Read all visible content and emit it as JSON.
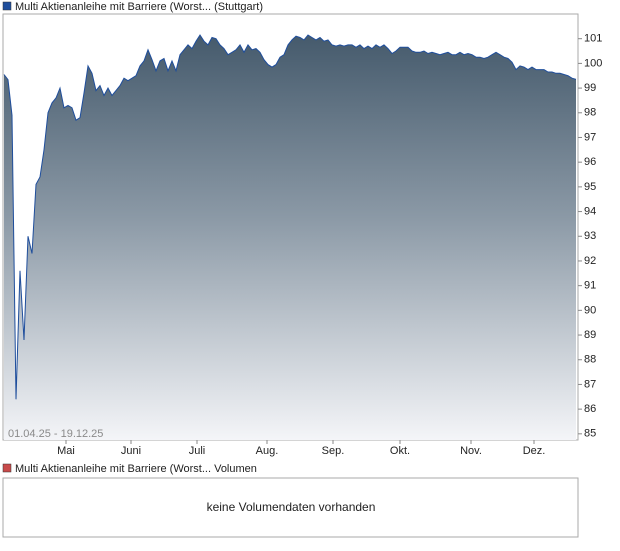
{
  "chart_data": {
    "type": "area",
    "series": [
      {
        "name": "Multi Aktienanleihe mit Barriere (Worst... (Stuttgart)",
        "color": "#1f4e9c",
        "values": [
          99.55,
          99.34,
          97.9,
          86.4,
          91.6,
          88.8,
          93.0,
          92.3,
          95.1,
          95.4,
          96.5,
          98.0,
          98.4,
          98.6,
          99.0,
          98.2,
          98.3,
          98.2,
          97.7,
          97.8,
          98.8,
          99.9,
          99.6,
          98.9,
          99.1,
          98.7,
          99.0,
          98.7,
          98.9,
          99.1,
          99.4,
          99.3,
          99.4,
          99.5,
          99.9,
          100.1,
          100.55,
          100.15,
          99.7,
          100.1,
          100.2,
          99.7,
          100.1,
          99.7,
          100.35,
          100.55,
          100.75,
          100.6,
          100.9,
          101.15,
          100.9,
          100.75,
          101.05,
          101.0,
          100.75,
          100.6,
          100.35,
          100.45,
          100.55,
          100.75,
          100.45,
          100.75,
          100.55,
          100.6,
          100.45,
          100.15,
          99.95,
          99.85,
          99.95,
          100.25,
          100.35,
          100.75,
          100.95,
          101.1,
          101.05,
          100.95,
          101.15,
          101.05,
          100.95,
          101.05,
          100.9,
          100.95,
          100.75,
          100.7,
          100.75,
          100.7,
          100.75,
          100.75,
          100.65,
          100.75,
          100.6,
          100.7,
          100.6,
          100.75,
          100.65,
          100.75,
          100.6,
          100.4,
          100.5,
          100.65,
          100.65,
          100.65,
          100.5,
          100.45,
          100.45,
          100.5,
          100.4,
          100.45,
          100.4,
          100.35,
          100.4,
          100.45,
          100.35,
          100.35,
          100.45,
          100.35,
          100.4,
          100.35,
          100.25,
          100.25,
          100.2,
          100.25,
          100.35,
          100.45,
          100.35,
          100.25,
          100.2,
          100.05,
          99.75,
          99.9,
          99.85,
          99.75,
          99.85,
          99.75,
          99.75,
          99.75,
          99.65,
          99.65,
          99.6,
          99.6,
          99.55,
          99.5,
          99.4,
          99.35
        ]
      }
    ],
    "date_range": "01.04.25 - 19.12.25",
    "xlim": [
      0,
      143
    ],
    "xticks": [
      {
        "value": 15.5,
        "label": "Mai"
      },
      {
        "value": 31.75,
        "label": "Juni"
      },
      {
        "value": 48.25,
        "label": "Juli"
      },
      {
        "value": 65.75,
        "label": "Aug."
      },
      {
        "value": 82.25,
        "label": "Sep."
      },
      {
        "value": 99,
        "label": "Okt."
      },
      {
        "value": 116.75,
        "label": "Nov."
      },
      {
        "value": 132.5,
        "label": "Dez."
      }
    ],
    "ylim": [
      84.75,
      102
    ],
    "yticks": [
      85,
      86,
      87,
      88,
      89,
      90,
      91,
      92,
      93,
      94,
      95,
      96,
      97,
      98,
      99,
      100,
      101
    ],
    "grid": false,
    "volume_legend": "Multi Aktienanleihe mit Barriere (Worst... Volumen",
    "volume_color": "#c84a4a",
    "volume_note": "keine Volumendaten vorhanden"
  }
}
